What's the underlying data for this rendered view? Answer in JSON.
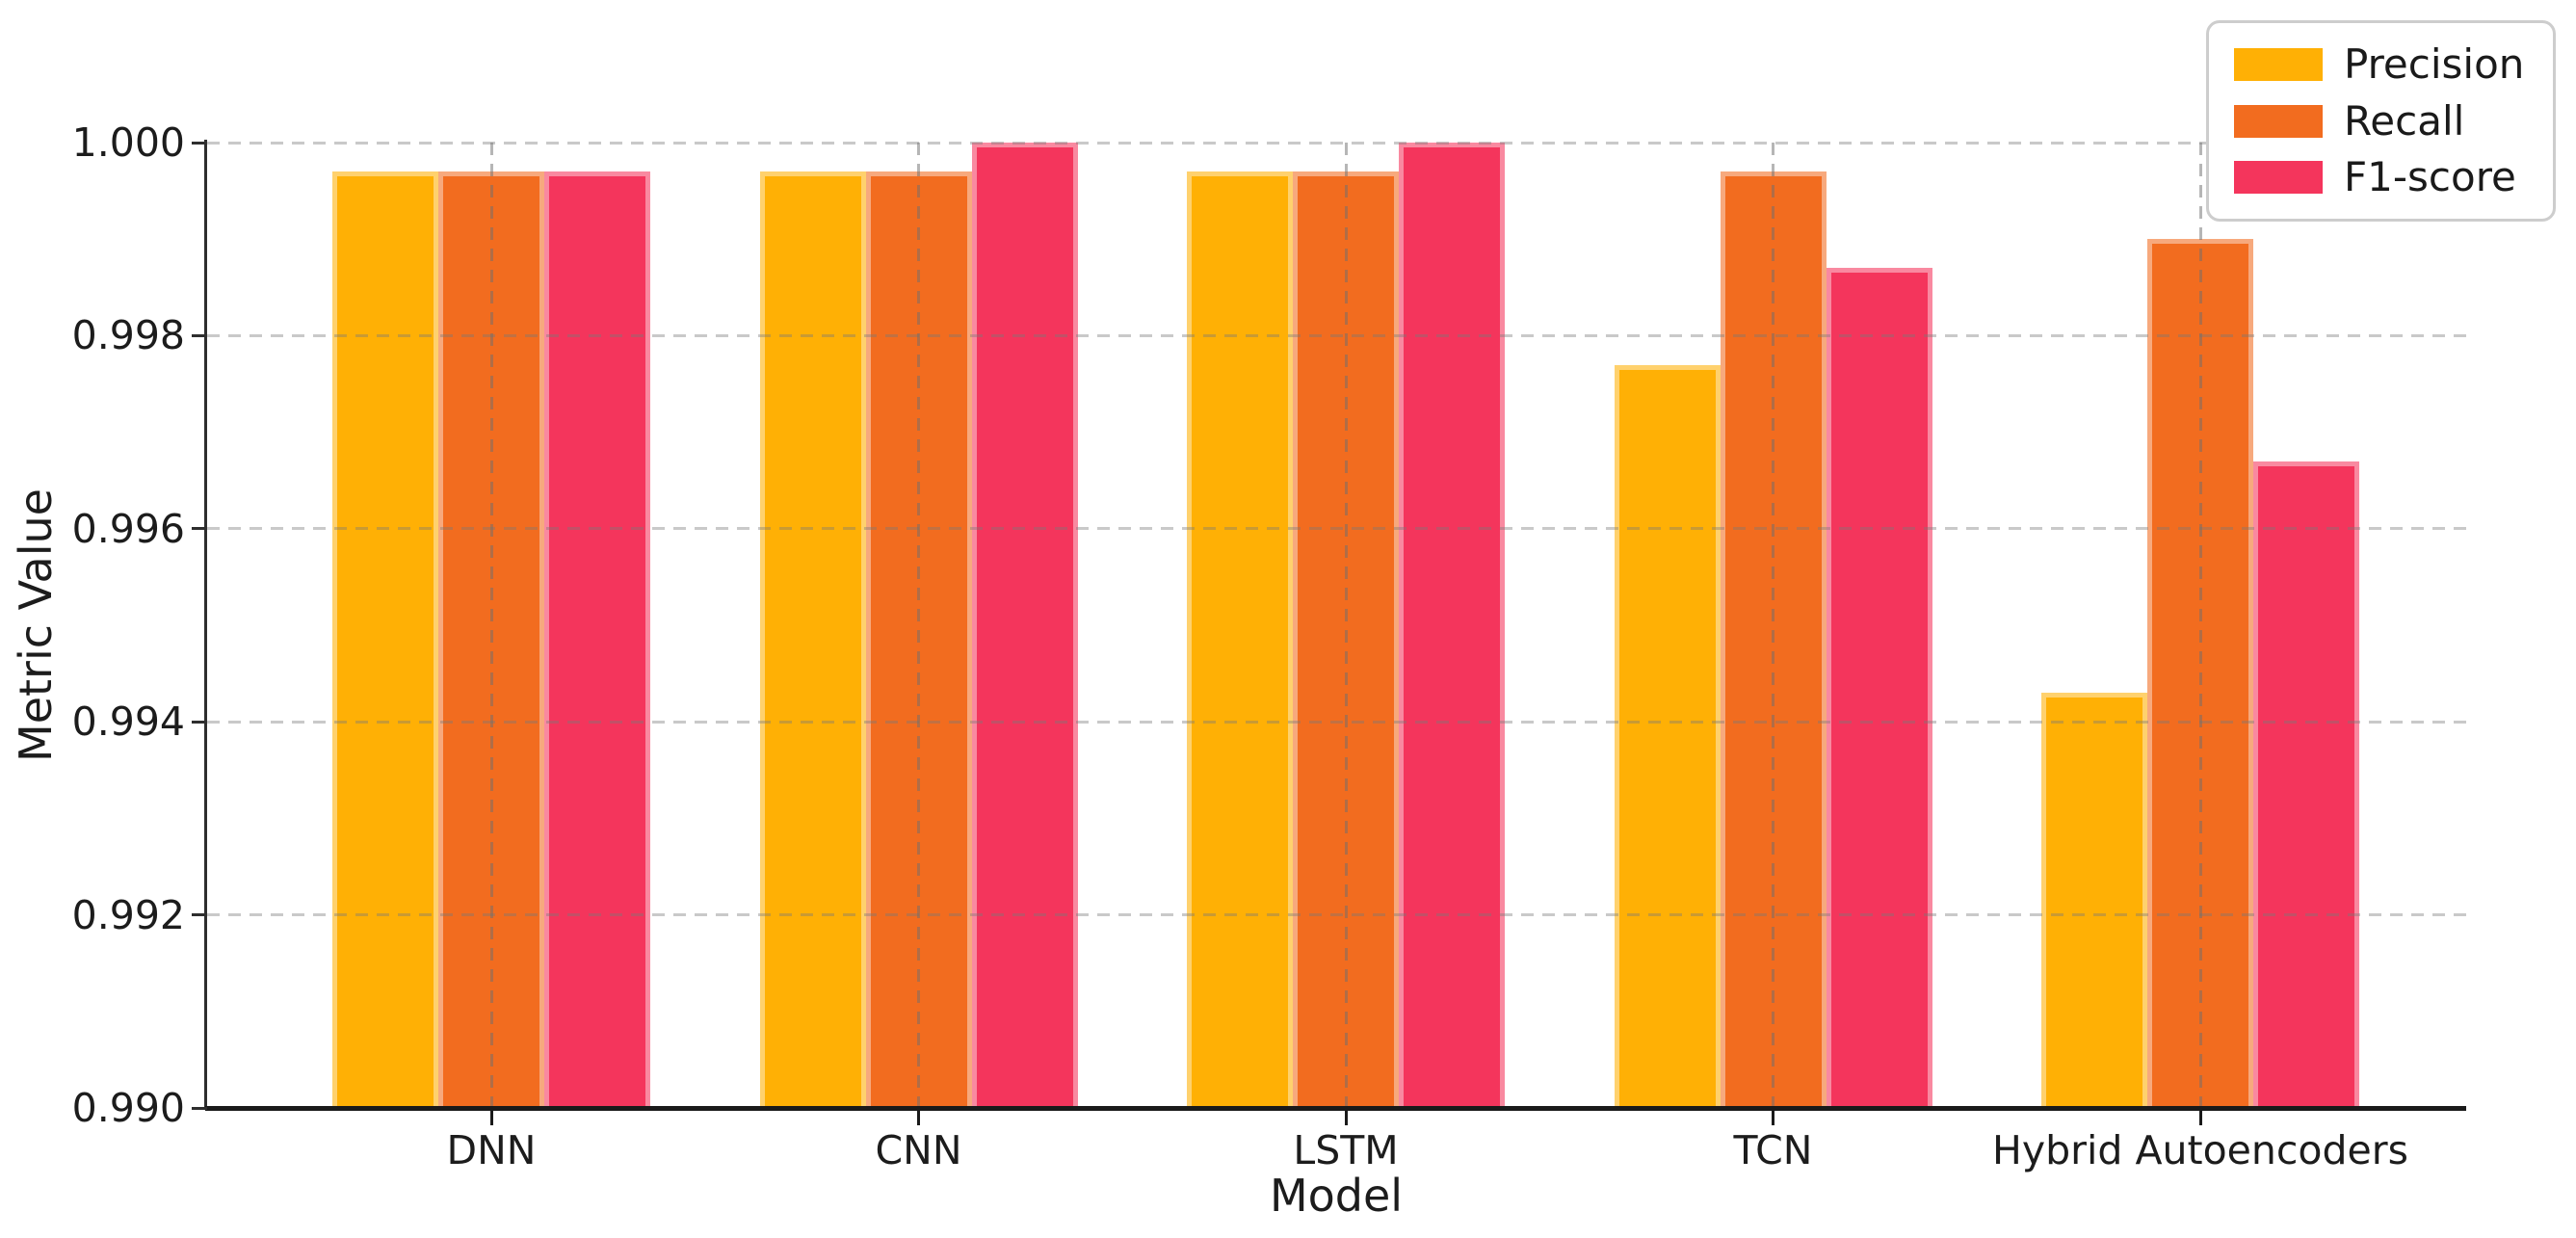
{
  "chart_data": {
    "type": "bar",
    "title": "",
    "xlabel": "Model",
    "ylabel": "Metric Value",
    "categories": [
      "DNN",
      "CNN",
      "LSTM",
      "TCN",
      "Hybrid Autoencoders"
    ],
    "series": [
      {
        "name": "Precision",
        "color": "#FFB005",
        "values": [
          0.9997,
          0.9997,
          0.9997,
          0.9977,
          0.9943
        ]
      },
      {
        "name": "Recall",
        "color": "#F26C1F",
        "values": [
          0.9997,
          0.9997,
          0.9997,
          0.9997,
          0.999
        ]
      },
      {
        "name": "F1-score",
        "color": "#F4355C",
        "values": [
          0.9997,
          1.0,
          1.0,
          0.9987,
          0.9967
        ]
      }
    ],
    "ylim": [
      0.99,
      1.0
    ],
    "yticks": [
      {
        "value": 1.0,
        "label": "1.000"
      },
      {
        "value": 0.998,
        "label": "0.998"
      },
      {
        "value": 0.996,
        "label": "0.996"
      },
      {
        "value": 0.994,
        "label": "0.994"
      },
      {
        "value": 0.992,
        "label": "0.992"
      },
      {
        "value": 0.99,
        "label": "0.990"
      }
    ],
    "grid": "dashed, horizontal and vertical, drawn over bars",
    "legend_position": "upper right"
  }
}
